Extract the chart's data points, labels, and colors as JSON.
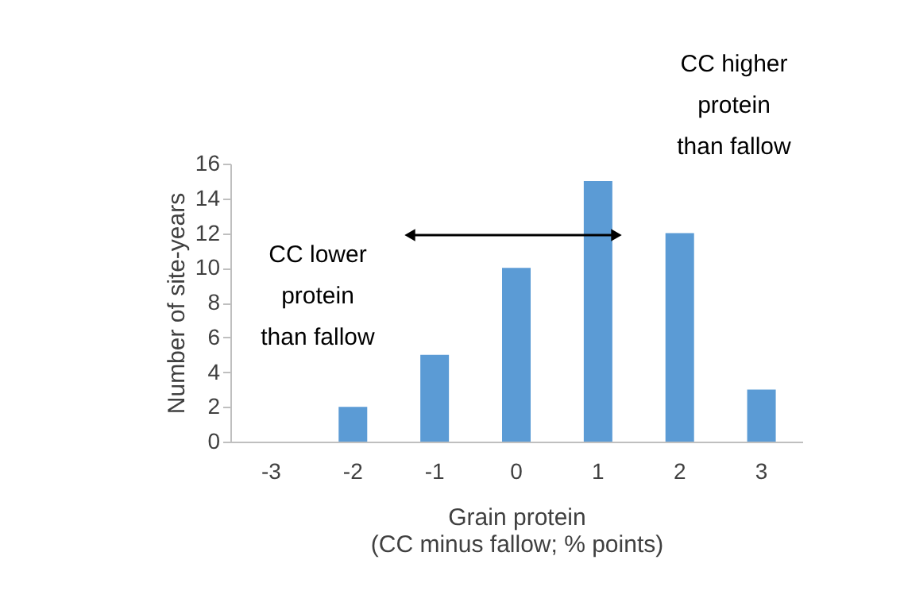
{
  "chart_data": {
    "type": "bar",
    "xlabel": "Grain protein\n(CC minus fallow; % points)",
    "ylabel": "Number of site-years",
    "categories": [
      "-3",
      "-2",
      "-1",
      "0",
      "1",
      "2",
      "3"
    ],
    "values": [
      0,
      2,
      5,
      10,
      15,
      12,
      3
    ],
    "color": "#5b9bd5",
    "ylim": [
      0,
      16
    ],
    "yticks": [
      0,
      2,
      4,
      6,
      8,
      10,
      12,
      14,
      16
    ],
    "grid": false,
    "annotations": [
      "CC lower\nprotein\nthan fallow",
      "CC higher\nprotein\nthan fallow"
    ]
  }
}
